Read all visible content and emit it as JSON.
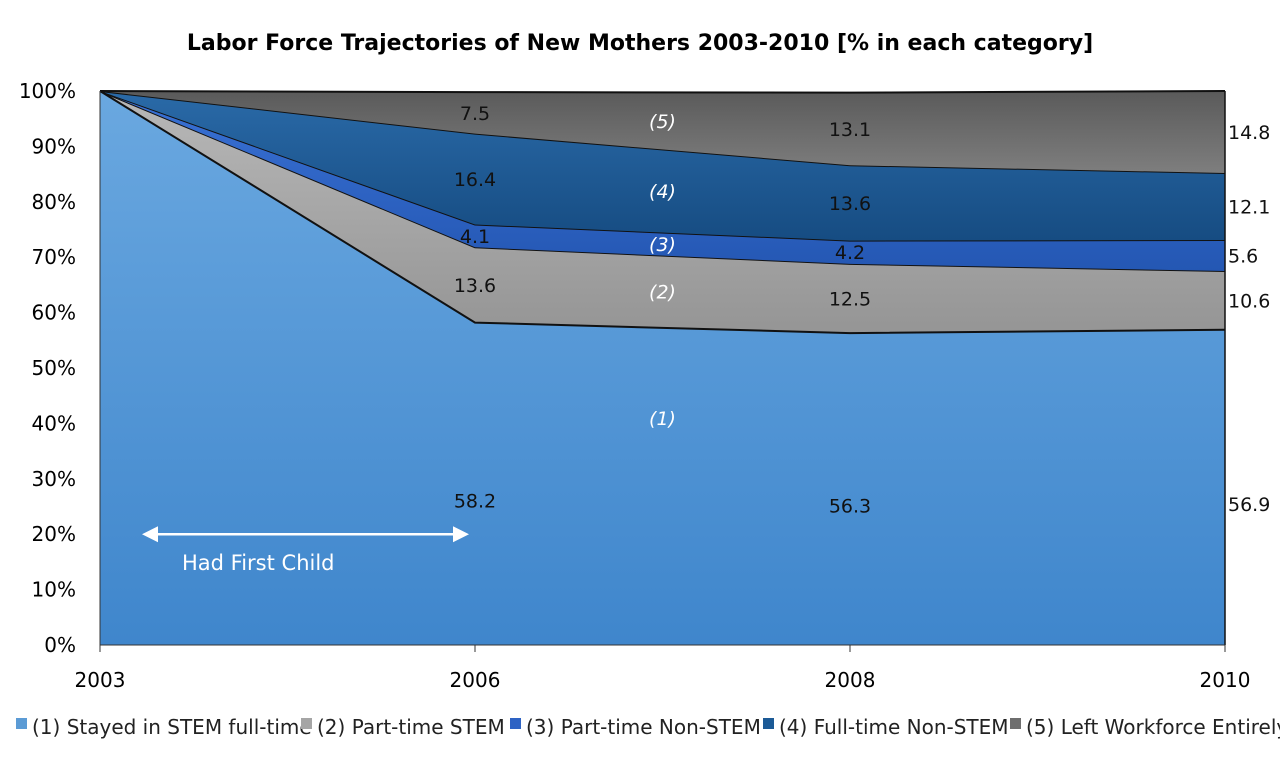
{
  "chart_data": {
    "type": "area",
    "stacked": true,
    "title": "Labor Force Trajectories of New Mothers 2003-2010  [% in each category]",
    "x": [
      "2003",
      "2006",
      "2008",
      "2010"
    ],
    "y_ticks": [
      "0%",
      "10%",
      "20%",
      "30%",
      "40%",
      "50%",
      "60%",
      "70%",
      "80%",
      "90%",
      "100%"
    ],
    "ylim": [
      0,
      100
    ],
    "grid": false,
    "legend_position": "bottom",
    "series": [
      {
        "name": "(1) Stayed in STEM full-time",
        "segment_label": "(1)",
        "values": [
          100,
          58.2,
          56.3,
          56.9
        ],
        "labels": [
          "",
          "58.2",
          "56.3",
          "56.9"
        ],
        "color": "#5b9bd5"
      },
      {
        "name": "(2) Part-time STEM",
        "segment_label": "(2)",
        "values": [
          0,
          13.6,
          12.5,
          10.6
        ],
        "labels": [
          "",
          "13.6",
          "12.5",
          "10.6"
        ],
        "color": "#a5a5a5"
      },
      {
        "name": "(3) Part-time Non-STEM",
        "segment_label": "(3)",
        "values": [
          0,
          4.1,
          4.2,
          5.6
        ],
        "labels": [
          "",
          "4.1",
          "4.2",
          "5.6"
        ],
        "color": "#2e63c4"
      },
      {
        "name": "(4) Full-time Non-STEM",
        "segment_label": "(4)",
        "values": [
          0,
          16.4,
          13.6,
          12.1
        ],
        "labels": [
          "",
          "16.4",
          "13.6",
          "12.1"
        ],
        "color": "#1c5a96"
      },
      {
        "name": "(5) Left Workforce Entirely",
        "segment_label": "(5)",
        "values": [
          0,
          7.5,
          13.1,
          14.8
        ],
        "labels": [
          "",
          "7.5",
          "13.1",
          "14.8"
        ],
        "color": "#6e6e6e"
      }
    ],
    "annotations": [
      {
        "text": "Had First Child",
        "arrow_from": "2003",
        "arrow_to": "2006"
      }
    ]
  }
}
